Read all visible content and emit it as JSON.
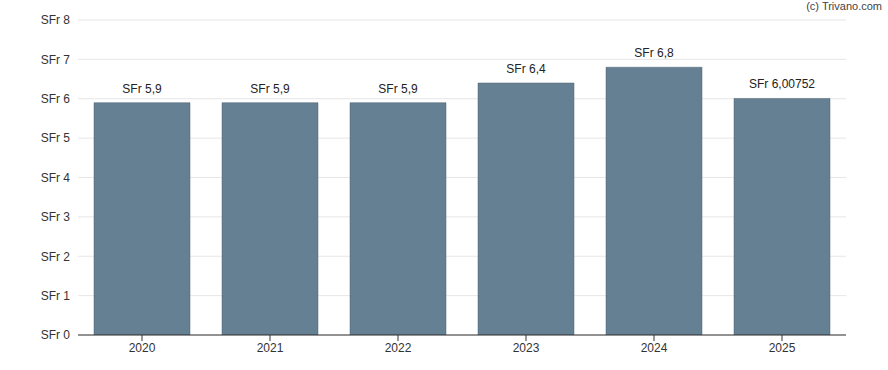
{
  "chart_data": {
    "type": "bar",
    "annotations": [
      "(c) Trivano.com"
    ],
    "categories": [
      "2020",
      "2021",
      "2022",
      "2023",
      "2024",
      "2025"
    ],
    "values": [
      5.9,
      5.9,
      5.9,
      6.4,
      6.8,
      6.00752
    ],
    "value_labels": [
      "SFr 5,9",
      "SFr 5,9",
      "SFr 5,9",
      "SFr 6,4",
      "SFr 6,8",
      "SFr 6,00752"
    ],
    "color": "#657f93",
    "ylim": [
      0,
      8
    ],
    "yticks": [
      {
        "value": 0,
        "label": "SFr 0"
      },
      {
        "value": 1,
        "label": "SFr 1"
      },
      {
        "value": 2,
        "label": "SFr 2"
      },
      {
        "value": 3,
        "label": "SFr 3"
      },
      {
        "value": 4,
        "label": "SFr 4"
      },
      {
        "value": 5,
        "label": "SFr 5"
      },
      {
        "value": 6,
        "label": "SFr 6"
      },
      {
        "value": 7,
        "label": "SFr 7"
      },
      {
        "value": 8,
        "label": "SFr 8"
      }
    ],
    "grid": true,
    "data_labels": true
  }
}
